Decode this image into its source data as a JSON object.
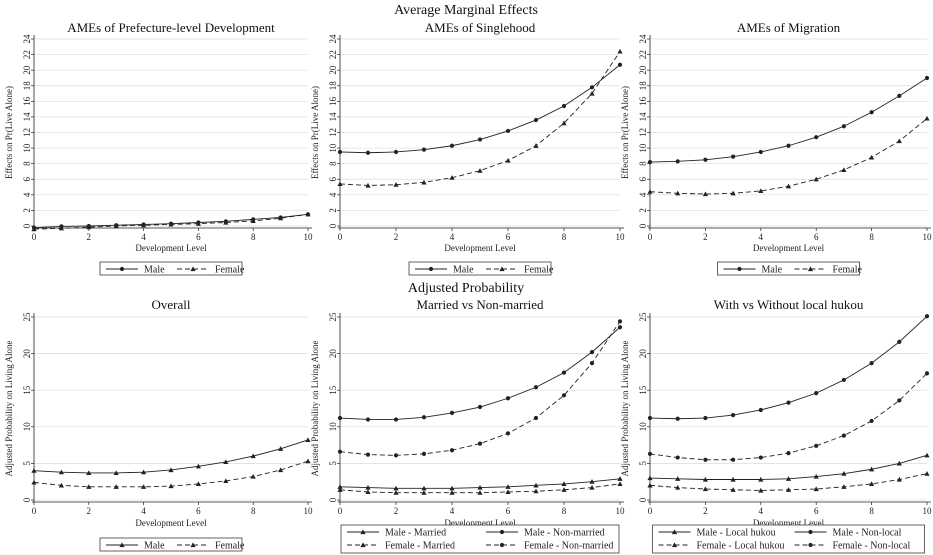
{
  "section_titles": [
    "Average Marginal Effects",
    "Adjusted Probability"
  ],
  "chart_data": [
    {
      "type": "line",
      "title": "AMEs of Prefecture-level Development",
      "xlabel": "Development Level",
      "ylabel": "Effects on Pr(Live Alone)",
      "x": [
        0,
        1,
        2,
        3,
        4,
        5,
        6,
        7,
        8,
        9,
        10
      ],
      "xlim": [
        0,
        10
      ],
      "ylim": [
        0,
        24
      ],
      "xticks": [
        0,
        2,
        4,
        6,
        8,
        10
      ],
      "yticks": [
        0,
        2,
        4,
        6,
        8,
        10,
        12,
        14,
        16,
        18,
        20,
        22,
        24
      ],
      "legend_position": "bottom",
      "series": [
        {
          "name": "Male",
          "line": "solid",
          "marker": "circle",
          "values": [
            -0.2,
            -0.05,
            0.0,
            0.1,
            0.2,
            0.3,
            0.45,
            0.6,
            0.85,
            1.1,
            1.5
          ]
        },
        {
          "name": "Female",
          "line": "dashed",
          "marker": "triangle",
          "values": [
            -0.4,
            -0.3,
            -0.15,
            0.0,
            0.1,
            0.2,
            0.3,
            0.45,
            0.65,
            1.0,
            1.5
          ]
        }
      ]
    },
    {
      "type": "line",
      "title": "AMEs of Singlehood",
      "xlabel": "Development Level",
      "ylabel": "Effects on Pr(Live Alone)",
      "x": [
        0,
        1,
        2,
        3,
        4,
        5,
        6,
        7,
        8,
        9,
        10
      ],
      "xlim": [
        0,
        10
      ],
      "ylim": [
        0,
        24
      ],
      "xticks": [
        0,
        2,
        4,
        6,
        8,
        10
      ],
      "yticks": [
        0,
        2,
        4,
        6,
        8,
        10,
        12,
        14,
        16,
        18,
        20,
        22,
        24
      ],
      "legend_position": "bottom",
      "series": [
        {
          "name": "Male",
          "line": "solid",
          "marker": "circle",
          "values": [
            9.5,
            9.4,
            9.5,
            9.8,
            10.3,
            11.1,
            12.2,
            13.6,
            15.4,
            17.8,
            20.7
          ]
        },
        {
          "name": "Female",
          "line": "dashed",
          "marker": "triangle",
          "values": [
            5.4,
            5.2,
            5.3,
            5.6,
            6.2,
            7.1,
            8.4,
            10.3,
            13.2,
            17.0,
            22.4
          ]
        }
      ]
    },
    {
      "type": "line",
      "title": "AMEs of Migration",
      "xlabel": "Development Level",
      "ylabel": "Effects on Pr(Live Alone)",
      "x": [
        0,
        1,
        2,
        3,
        4,
        5,
        6,
        7,
        8,
        9,
        10
      ],
      "xlim": [
        0,
        10
      ],
      "ylim": [
        0,
        24
      ],
      "xticks": [
        0,
        2,
        4,
        6,
        8,
        10
      ],
      "yticks": [
        0,
        2,
        4,
        6,
        8,
        10,
        12,
        14,
        16,
        18,
        20,
        22,
        24
      ],
      "legend_position": "bottom",
      "series": [
        {
          "name": "Male",
          "line": "solid",
          "marker": "circle",
          "values": [
            8.2,
            8.3,
            8.5,
            8.9,
            9.5,
            10.3,
            11.4,
            12.8,
            14.6,
            16.7,
            19.0
          ]
        },
        {
          "name": "Female",
          "line": "dashed",
          "marker": "triangle",
          "values": [
            4.4,
            4.2,
            4.1,
            4.2,
            4.5,
            5.1,
            6.0,
            7.2,
            8.8,
            10.9,
            13.8
          ]
        }
      ]
    },
    {
      "type": "line",
      "title": "Overall",
      "xlabel": "Development Level",
      "ylabel": "Adjusted Probability on Living Alone",
      "x": [
        0,
        1,
        2,
        3,
        4,
        5,
        6,
        7,
        8,
        9,
        10
      ],
      "xlim": [
        0,
        10
      ],
      "ylim": [
        0,
        25
      ],
      "xticks": [
        0,
        2,
        4,
        6,
        8,
        10
      ],
      "yticks": [
        0,
        5,
        10,
        15,
        20,
        25
      ],
      "legend_position": "bottom",
      "series": [
        {
          "name": "Male",
          "line": "solid",
          "marker": "triangle",
          "values": [
            4.0,
            3.8,
            3.7,
            3.7,
            3.8,
            4.1,
            4.6,
            5.2,
            6.0,
            7.0,
            8.2
          ]
        },
        {
          "name": "Female",
          "line": "dashed",
          "marker": "triangle",
          "values": [
            2.4,
            2.0,
            1.8,
            1.8,
            1.8,
            1.9,
            2.2,
            2.6,
            3.2,
            4.1,
            5.3
          ]
        }
      ]
    },
    {
      "type": "line",
      "title": "Married vs Non-married",
      "xlabel": "Development Level",
      "ylabel": "Adjusted Probability on Living Alone",
      "x": [
        0,
        1,
        2,
        3,
        4,
        5,
        6,
        7,
        8,
        9,
        10
      ],
      "xlim": [
        0,
        10
      ],
      "ylim": [
        0,
        25
      ],
      "xticks": [
        0,
        2,
        4,
        6,
        8,
        10
      ],
      "yticks": [
        0,
        5,
        10,
        15,
        20,
        25
      ],
      "legend_position": "bottom",
      "series": [
        {
          "name": "Male - Married",
          "line": "solid",
          "marker": "triangle",
          "values": [
            1.8,
            1.7,
            1.6,
            1.6,
            1.6,
            1.7,
            1.8,
            2.0,
            2.2,
            2.5,
            2.9
          ]
        },
        {
          "name": "Male - Non-married",
          "line": "solid",
          "marker": "circle",
          "values": [
            11.2,
            11.0,
            11.0,
            11.3,
            11.9,
            12.7,
            13.9,
            15.4,
            17.4,
            20.2,
            23.6
          ]
        },
        {
          "name": "Female - Married",
          "line": "dashed",
          "marker": "triangle",
          "values": [
            1.4,
            1.1,
            1.0,
            1.0,
            1.0,
            1.0,
            1.1,
            1.2,
            1.4,
            1.7,
            2.2
          ]
        },
        {
          "name": "Female - Non-married",
          "line": "dashed",
          "marker": "circle",
          "values": [
            6.6,
            6.2,
            6.1,
            6.3,
            6.8,
            7.7,
            9.1,
            11.2,
            14.3,
            18.7,
            24.4
          ]
        }
      ]
    },
    {
      "type": "line",
      "title": "With vs Without local hukou",
      "xlabel": "Development Level",
      "ylabel": "Adjusted Probability on Living Alone",
      "x": [
        0,
        1,
        2,
        3,
        4,
        5,
        6,
        7,
        8,
        9,
        10
      ],
      "xlim": [
        0,
        10
      ],
      "ylim": [
        0,
        25
      ],
      "xticks": [
        0,
        2,
        4,
        6,
        8,
        10
      ],
      "yticks": [
        0,
        5,
        10,
        15,
        20,
        25
      ],
      "legend_position": "bottom",
      "series": [
        {
          "name": "Male - Local hukou",
          "line": "solid",
          "marker": "triangle",
          "values": [
            3.0,
            2.9,
            2.8,
            2.8,
            2.8,
            2.9,
            3.2,
            3.6,
            4.2,
            5.0,
            6.1
          ]
        },
        {
          "name": "Male - Non-local",
          "line": "solid",
          "marker": "circle",
          "values": [
            11.2,
            11.1,
            11.2,
            11.6,
            12.3,
            13.3,
            14.6,
            16.4,
            18.7,
            21.6,
            25.1
          ]
        },
        {
          "name": "Female - Local hukou",
          "line": "dashed",
          "marker": "triangle",
          "values": [
            2.0,
            1.7,
            1.5,
            1.4,
            1.3,
            1.4,
            1.5,
            1.8,
            2.2,
            2.8,
            3.6
          ]
        },
        {
          "name": "Female - Non-local",
          "line": "dashed",
          "marker": "circle",
          "values": [
            6.3,
            5.8,
            5.5,
            5.5,
            5.8,
            6.4,
            7.4,
            8.8,
            10.8,
            13.6,
            17.3
          ]
        }
      ]
    }
  ]
}
